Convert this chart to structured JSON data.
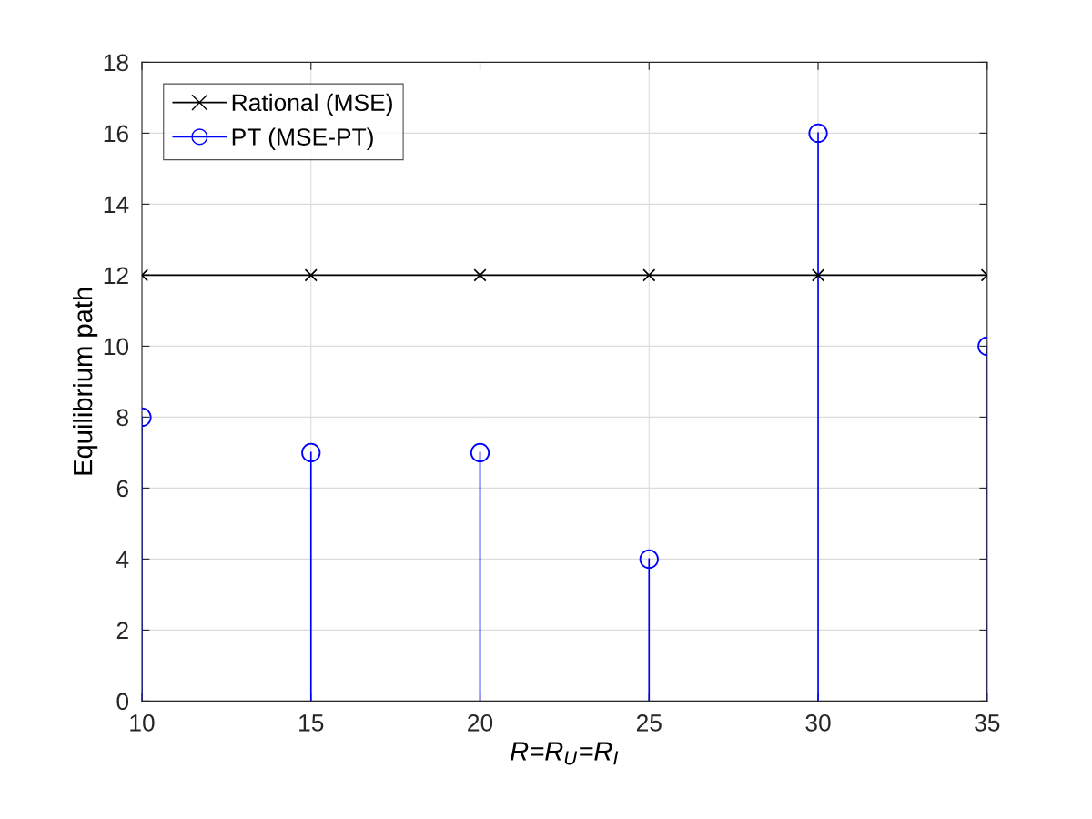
{
  "chart_data": {
    "type": "line",
    "xlabel": "R=R$_{U}$=R$_{I}$",
    "ylabel": "Equilibrium path",
    "x": [
      10,
      15,
      20,
      25,
      30,
      35
    ],
    "series": [
      {
        "name": "Rational (MSE)",
        "color": "#000000",
        "marker": "cross",
        "values": [
          12,
          12,
          12,
          12,
          12,
          12
        ]
      },
      {
        "name": "PT (MSE-PT)",
        "type": "lollipop",
        "color": "#0000ff",
        "marker": "circle",
        "values": [
          8,
          7,
          7,
          4,
          16,
          10
        ]
      }
    ],
    "xlim": [
      10,
      35
    ],
    "xticks": [
      10,
      15,
      20,
      25,
      30,
      35
    ],
    "ylim": [
      0,
      18
    ],
    "yticks": [
      0,
      2,
      4,
      6,
      8,
      10,
      12,
      14,
      16,
      18
    ],
    "grid": true,
    "legend": "top left",
    "line_style": "solid"
  }
}
